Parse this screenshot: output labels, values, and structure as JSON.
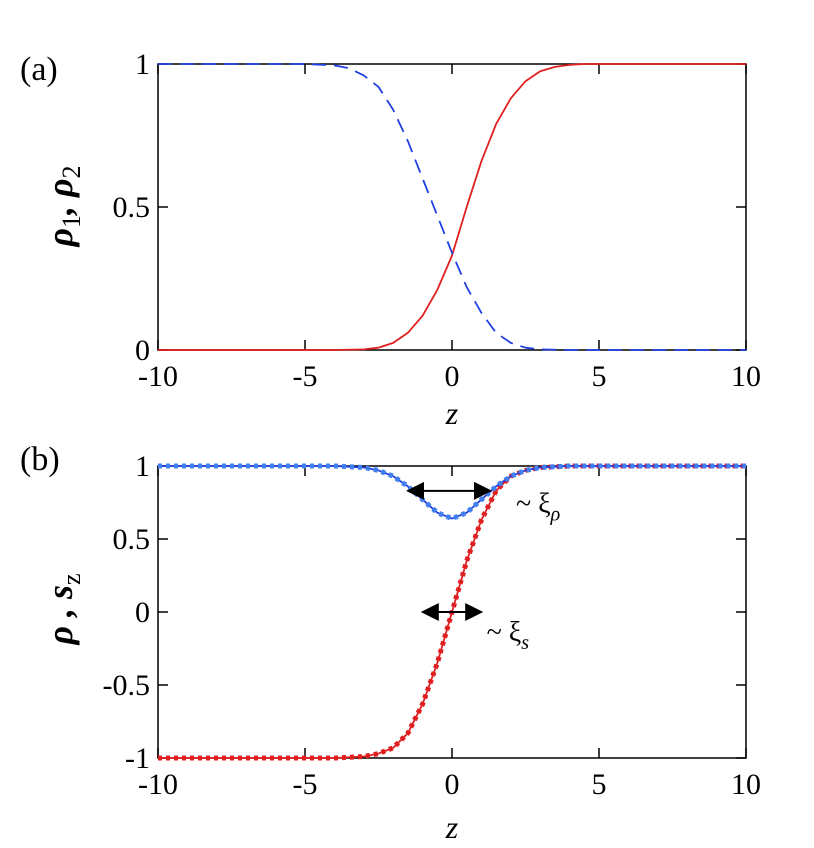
{
  "chart_data": [
    {
      "panel": "(a)",
      "type": "line",
      "xlabel": "z",
      "ylabel": {
        "base1": "ρ",
        "sub1": "1",
        "sep": ", ",
        "base2": "ρ",
        "sub2": "2"
      },
      "xlim": [
        -10,
        10
      ],
      "ylim": [
        0,
        1
      ],
      "xticks": [
        "-10",
        "-5",
        "0",
        "5",
        "10"
      ],
      "yticks": [
        "0",
        "0.5",
        "1"
      ],
      "series": [
        {
          "color": "#e02020",
          "dash": "solid",
          "x": [
            -10,
            -4,
            -3,
            -2.5,
            -2,
            -1.5,
            -1,
            -0.5,
            0,
            0.5,
            1,
            1.5,
            2,
            2.5,
            3,
            3.5,
            4,
            4.5,
            5,
            10
          ],
          "y": [
            0,
            0,
            0.002,
            0.008,
            0.025,
            0.06,
            0.12,
            0.21,
            0.33,
            0.5,
            0.66,
            0.79,
            0.88,
            0.94,
            0.975,
            0.99,
            0.997,
            1,
            1,
            1
          ]
        },
        {
          "color": "#2040e0",
          "dash": "dashed",
          "x": [
            -10,
            -5,
            -4,
            -3.5,
            -3,
            -2.5,
            -2,
            -1.5,
            -1,
            -0.5,
            0,
            0.5,
            1,
            1.5,
            2,
            2.5,
            3,
            4,
            10
          ],
          "y": [
            1,
            1,
            0.995,
            0.985,
            0.96,
            0.92,
            0.84,
            0.73,
            0.6,
            0.47,
            0.34,
            0.22,
            0.13,
            0.06,
            0.025,
            0.008,
            0.002,
            0,
            0
          ]
        }
      ]
    },
    {
      "panel": "(b)",
      "type": "line",
      "xlabel": "z",
      "ylabel": {
        "base1": "ρ",
        "sep": " , ",
        "base2": "s",
        "sub2": "z"
      },
      "xlim": [
        -10,
        10
      ],
      "ylim": [
        -1,
        1
      ],
      "xticks": [
        "-10",
        "-5",
        "0",
        "5",
        "10"
      ],
      "yticks": [
        "-1",
        "-0.5",
        "0",
        "0.5",
        "1"
      ],
      "series": [
        {
          "color": "#e02020",
          "dash": "solid",
          "x": [
            -10,
            -4,
            -3,
            -2.5,
            -2,
            -1.5,
            -1,
            -0.5,
            0,
            0.5,
            1,
            1.5,
            2,
            2.5,
            3,
            4,
            10
          ],
          "y": [
            -1,
            -1,
            -0.99,
            -0.97,
            -0.93,
            -0.83,
            -0.63,
            -0.35,
            0,
            0.35,
            0.63,
            0.83,
            0.93,
            0.97,
            0.99,
            1,
            1
          ]
        },
        {
          "color": "#e02020",
          "dash": "dotted",
          "x": [
            -10,
            -4,
            -3,
            -2.5,
            -2,
            -1.5,
            -1,
            -0.5,
            0,
            0.5,
            1,
            1.5,
            2,
            2.5,
            3,
            4,
            10
          ],
          "y": [
            -1,
            -1,
            -0.99,
            -0.97,
            -0.93,
            -0.83,
            -0.63,
            -0.35,
            0,
            0.35,
            0.63,
            0.83,
            0.93,
            0.97,
            0.99,
            1,
            1
          ]
        },
        {
          "color": "#2040e0",
          "dash": "solid",
          "x": [
            -10,
            -4,
            -3,
            -2.5,
            -2,
            -1.5,
            -1,
            -0.5,
            0,
            0.5,
            1,
            1.5,
            2,
            2.5,
            3,
            4,
            10
          ],
          "y": [
            1,
            1,
            0.99,
            0.97,
            0.93,
            0.86,
            0.77,
            0.68,
            0.64,
            0.68,
            0.77,
            0.86,
            0.93,
            0.97,
            0.99,
            1,
            1
          ]
        },
        {
          "color": "#4080f0",
          "dash": "dotted",
          "x": [
            -10,
            -4,
            -3,
            -2.5,
            -2,
            -1.5,
            -1,
            -0.5,
            0,
            0.5,
            1,
            1.5,
            2,
            2.5,
            3,
            4,
            10
          ],
          "y": [
            1,
            1,
            0.99,
            0.97,
            0.93,
            0.86,
            0.77,
            0.68,
            0.64,
            0.68,
            0.77,
            0.86,
            0.93,
            0.97,
            0.99,
            1,
            1
          ]
        }
      ],
      "annotations": [
        {
          "text_prefix": "~ ξ",
          "sub": "ρ",
          "arrow_x": [
            -1.5,
            1.3
          ],
          "arrow_y": 0.83,
          "anchor_x": 1.7,
          "anchor_y": 0.75
        },
        {
          "text_prefix": "~ ξ",
          "sub": "s",
          "arrow_x": [
            -1.0,
            1.0
          ],
          "arrow_y": 0.0,
          "anchor_x": 0.7,
          "anchor_y": -0.13
        }
      ]
    }
  ]
}
